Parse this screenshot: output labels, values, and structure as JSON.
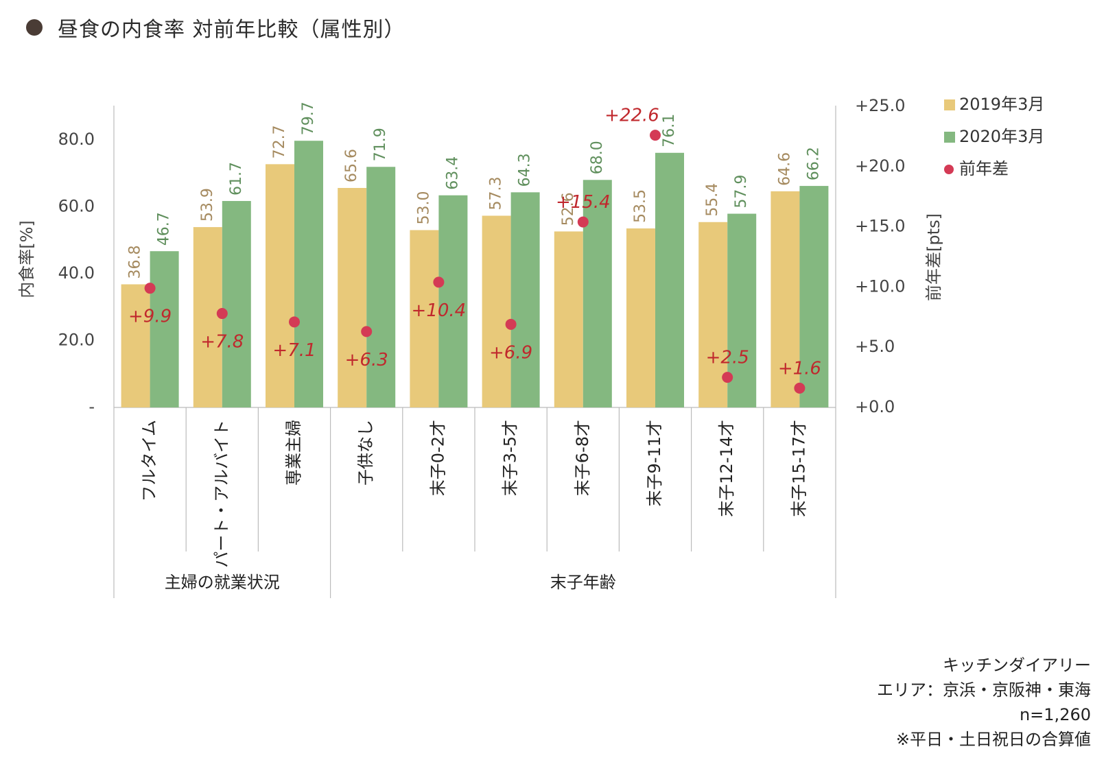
{
  "title": "昼食の内食率 対前年比較（属性別）",
  "chart_data": {
    "type": "bar",
    "categories": [
      "フルタイム",
      "パート・アルバイト",
      "専業主婦",
      "子供なし",
      "末子0-2才",
      "末子3-5才",
      "末子6-8才",
      "末子9-11才",
      "末子12-14才",
      "末子15-17才"
    ],
    "groups": [
      {
        "label": "主婦の就業状況",
        "start": 0,
        "end": 2
      },
      {
        "label": "末子年齢",
        "start": 3,
        "end": 9
      }
    ],
    "series": [
      {
        "name": "2019年3月",
        "color": "#e8c97a",
        "label_color": "#a58a5f",
        "axis": "left",
        "values": [
          36.8,
          53.9,
          72.7,
          65.6,
          53.0,
          57.3,
          52.6,
          53.5,
          55.4,
          64.6
        ],
        "labels": [
          "36.8",
          "53.9",
          "72.7",
          "65.6",
          "53.0",
          "57.3",
          "52.6",
          "53.5",
          "55.4",
          "64.6"
        ]
      },
      {
        "name": "2020年3月",
        "color": "#84b880",
        "label_color": "#5f8f5c",
        "axis": "left",
        "values": [
          46.7,
          61.7,
          79.7,
          71.9,
          63.4,
          64.3,
          68.0,
          76.1,
          57.9,
          66.2
        ],
        "labels": [
          "46.7",
          "61.7",
          "79.7",
          "71.9",
          "63.4",
          "64.3",
          "68.0",
          "76.1",
          "57.9",
          "66.2"
        ]
      },
      {
        "name": "前年差",
        "type": "scatter",
        "color": "#d43a55",
        "label_color": "#c0282d",
        "axis": "right",
        "values": [
          9.9,
          7.8,
          7.1,
          6.3,
          10.4,
          6.9,
          15.4,
          22.6,
          2.5,
          1.6
        ],
        "labels": [
          "+9.9",
          "+7.8",
          "+7.1",
          "+6.3",
          "+10.4",
          "+6.9",
          "+15.4",
          "+22.6",
          "+2.5",
          "+1.6"
        ]
      }
    ],
    "ylabel": "内食率[%]",
    "ylim": [
      0,
      90
    ],
    "yticks": [
      0,
      20,
      40,
      60,
      80
    ],
    "ytick_labels": [
      "-",
      "20.0",
      "40.0",
      "60.0",
      "80.0"
    ],
    "y2label": "前年差[pts]",
    "y2lim": [
      0,
      25
    ],
    "y2ticks": [
      0,
      5,
      10,
      15,
      20,
      25
    ],
    "y2tick_labels": [
      "+0.0",
      "+5.0",
      "+10.0",
      "+15.0",
      "+20.0",
      "+25.0"
    ],
    "legend_position": "top-right",
    "grid": false
  },
  "source_note": [
    "キッチンダイアリー",
    "エリア：京浜・京阪神・東海",
    "n=1,260",
    "※平日・土日祝日の合算値"
  ]
}
